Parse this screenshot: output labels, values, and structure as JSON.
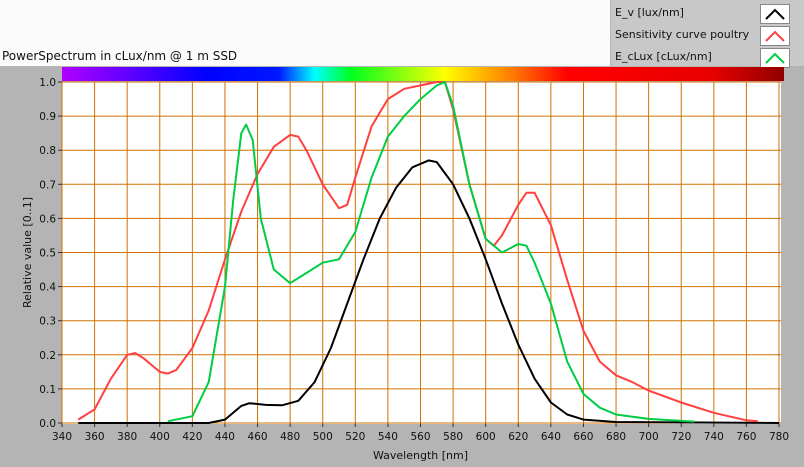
{
  "chart_data": {
    "type": "line",
    "title": "PowerSpectrum in cLux/nm @ 1 m SSD",
    "xlabel": "Wavelength [nm]",
    "ylabel": "Relative value [0..1]",
    "xlim": [
      340,
      780
    ],
    "ylim": [
      0,
      1
    ],
    "xticks": [
      340,
      360,
      380,
      400,
      420,
      440,
      460,
      480,
      500,
      520,
      540,
      560,
      580,
      600,
      620,
      640,
      660,
      680,
      700,
      720,
      740,
      760,
      780
    ],
    "yticks": [
      "0.0",
      "0.1",
      "0.2",
      "0.3",
      "0.4",
      "0.5",
      "0.6",
      "0.7",
      "0.8",
      "0.9",
      "1.0"
    ],
    "grid": true,
    "legend_position": "top-right",
    "series": [
      {
        "name": "E_v [lux/nm]",
        "color": "#000000",
        "x": [
          350,
          430,
          440,
          450,
          455,
          465,
          475,
          485,
          495,
          505,
          515,
          525,
          535,
          545,
          555,
          565,
          570,
          580,
          590,
          600,
          610,
          620,
          630,
          640,
          650,
          660,
          680,
          780
        ],
        "y": [
          0,
          0,
          0.01,
          0.05,
          0.058,
          0.053,
          0.052,
          0.065,
          0.12,
          0.22,
          0.35,
          0.48,
          0.6,
          0.69,
          0.75,
          0.77,
          0.765,
          0.7,
          0.6,
          0.48,
          0.35,
          0.23,
          0.13,
          0.06,
          0.025,
          0.01,
          0.003,
          0
        ]
      },
      {
        "name": "Sensitivity curve poultry",
        "color": "#ff4040",
        "x": [
          350,
          360,
          370,
          380,
          385,
          390,
          400,
          405,
          410,
          420,
          430,
          440,
          450,
          460,
          470,
          480,
          485,
          490,
          500,
          510,
          515,
          520,
          530,
          540,
          550,
          560,
          570,
          575,
          580,
          590,
          600,
          605,
          610,
          620,
          625,
          630,
          640,
          650,
          660,
          670,
          680,
          690,
          700,
          720,
          740,
          760,
          767
        ],
        "y": [
          0.01,
          0.04,
          0.13,
          0.2,
          0.205,
          0.19,
          0.15,
          0.145,
          0.155,
          0.22,
          0.33,
          0.48,
          0.62,
          0.73,
          0.81,
          0.845,
          0.84,
          0.8,
          0.7,
          0.63,
          0.64,
          0.72,
          0.87,
          0.95,
          0.98,
          0.99,
          1.0,
          1.0,
          0.92,
          0.7,
          0.54,
          0.52,
          0.55,
          0.64,
          0.675,
          0.675,
          0.58,
          0.42,
          0.27,
          0.18,
          0.14,
          0.12,
          0.095,
          0.06,
          0.03,
          0.008,
          0.005
        ]
      },
      {
        "name": "E_cLux [cLux/nm]",
        "color": "#00cc44",
        "x": [
          405,
          420,
          430,
          440,
          445,
          450,
          453,
          457,
          462,
          470,
          480,
          490,
          500,
          510,
          520,
          530,
          540,
          550,
          560,
          570,
          575,
          580,
          590,
          600,
          610,
          620,
          625,
          630,
          640,
          650,
          660,
          670,
          680,
          700,
          728
        ],
        "y": [
          0.005,
          0.02,
          0.12,
          0.4,
          0.65,
          0.85,
          0.875,
          0.83,
          0.6,
          0.45,
          0.41,
          0.44,
          0.47,
          0.48,
          0.56,
          0.72,
          0.84,
          0.9,
          0.95,
          0.99,
          1.0,
          0.93,
          0.7,
          0.54,
          0.5,
          0.525,
          0.52,
          0.47,
          0.35,
          0.18,
          0.085,
          0.045,
          0.025,
          0.012,
          0.004
        ]
      }
    ]
  }
}
